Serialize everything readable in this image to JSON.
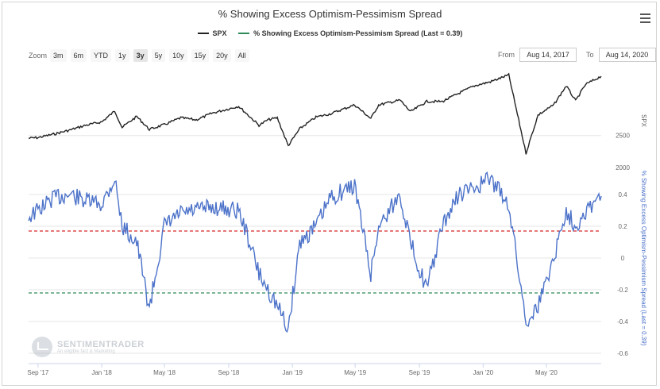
{
  "chart_title": "% Showing Excess Optimism-Pessimism Spread",
  "legend": [
    {
      "label": "SPX",
      "color": "#222222"
    },
    {
      "label": "% Showing Excess Optimism-Pessimism Spread (Last = 0.39)",
      "color": "#2e8b57"
    }
  ],
  "zoom": {
    "label": "Zoom",
    "buttons": [
      "3m",
      "6m",
      "YTD",
      "1y",
      "3y",
      "5y",
      "10y",
      "15y",
      "20y",
      "All"
    ],
    "selected": "3y"
  },
  "range": {
    "from_label": "From",
    "from_value": "Aug 14, 2017",
    "to_label": "To",
    "to_value": "Aug 14, 2020"
  },
  "watermark": {
    "name": "SENTIMENTRADER",
    "tagline": "An eligible fact & Marketing"
  },
  "colors": {
    "spx": "#222222",
    "spread": "#4c72c9",
    "red_line": "#d62728",
    "green_line": "#2e8b57",
    "grid": "#e6e6e6"
  },
  "chart_data": {
    "type": "line",
    "x": [
      "2017-08-14",
      "2017-09-01",
      "2017-10-01",
      "2017-11-01",
      "2017-12-01",
      "2018-01-01",
      "2018-01-26",
      "2018-02-09",
      "2018-03-09",
      "2018-04-02",
      "2018-05-01",
      "2018-06-01",
      "2018-07-01",
      "2018-08-01",
      "2018-09-20",
      "2018-10-11",
      "2018-10-29",
      "2018-11-15",
      "2018-12-03",
      "2018-12-24",
      "2019-01-15",
      "2019-02-15",
      "2019-03-15",
      "2019-04-30",
      "2019-05-31",
      "2019-06-15",
      "2019-07-26",
      "2019-08-15",
      "2019-09-15",
      "2019-10-15",
      "2019-11-15",
      "2019-12-15",
      "2020-01-15",
      "2020-02-19",
      "2020-03-23",
      "2020-04-15",
      "2020-05-15",
      "2020-06-08",
      "2020-06-26",
      "2020-07-15",
      "2020-08-14"
    ],
    "series": [
      {
        "name": "SPX",
        "axis": "top",
        "values": [
          2460,
          2470,
          2520,
          2580,
          2650,
          2700,
          2860,
          2620,
          2780,
          2590,
          2660,
          2760,
          2730,
          2830,
          2930,
          2780,
          2650,
          2730,
          2760,
          2350,
          2600,
          2770,
          2820,
          2950,
          2750,
          2950,
          3020,
          2850,
          3000,
          3000,
          3120,
          3230,
          3290,
          3390,
          2240,
          2800,
          2950,
          3230,
          3010,
          3250,
          3372
        ]
      },
      {
        "name": "% Showing Excess Optimism-Pessimism Spread",
        "axis": "bottom",
        "values": [
          0.26,
          0.3,
          0.38,
          0.4,
          0.36,
          0.34,
          0.5,
          0.2,
          0.1,
          -0.32,
          0.2,
          0.28,
          0.3,
          0.32,
          0.3,
          0.1,
          -0.1,
          -0.2,
          -0.3,
          -0.45,
          0.1,
          0.2,
          0.38,
          0.46,
          -0.1,
          0.2,
          0.4,
          0.1,
          -0.2,
          0.2,
          0.4,
          0.44,
          0.5,
          0.34,
          -0.4,
          -0.3,
          0.0,
          0.3,
          0.2,
          0.3,
          0.39
        ]
      }
    ],
    "reference_lines": [
      {
        "value": 0.17,
        "color": "#d62728",
        "style": "dashed"
      },
      {
        "value": -0.22,
        "color": "#2e8b57",
        "style": "dashed"
      }
    ],
    "top_axis": {
      "title": "SPX",
      "ticks": [
        2500
      ],
      "range": [
        2100,
        3500
      ]
    },
    "bottom_axis": {
      "title": "% Showing Excess Optimism-Pessimism Spread (Last = 0.39)",
      "ticks": [
        0.4,
        0.2,
        0,
        -0.2,
        -0.4,
        -0.6
      ],
      "range": [
        -0.65,
        0.55
      ]
    },
    "extra_tick": {
      "axis": "divider",
      "value": 2000
    },
    "x_ticks": [
      {
        "label": "Sep '17",
        "date": "2017-09-01"
      },
      {
        "label": "Jan '18",
        "date": "2018-01-01"
      },
      {
        "label": "May '18",
        "date": "2018-05-01"
      },
      {
        "label": "Sep '18",
        "date": "2018-09-01"
      },
      {
        "label": "Jan '19",
        "date": "2019-01-01"
      },
      {
        "label": "May '19",
        "date": "2019-05-01"
      },
      {
        "label": "Sep '19",
        "date": "2019-09-01"
      },
      {
        "label": "Jan '20",
        "date": "2020-01-01"
      },
      {
        "label": "May '20",
        "date": "2020-05-01"
      }
    ],
    "x_range": [
      "2017-08-14",
      "2020-08-14"
    ]
  }
}
